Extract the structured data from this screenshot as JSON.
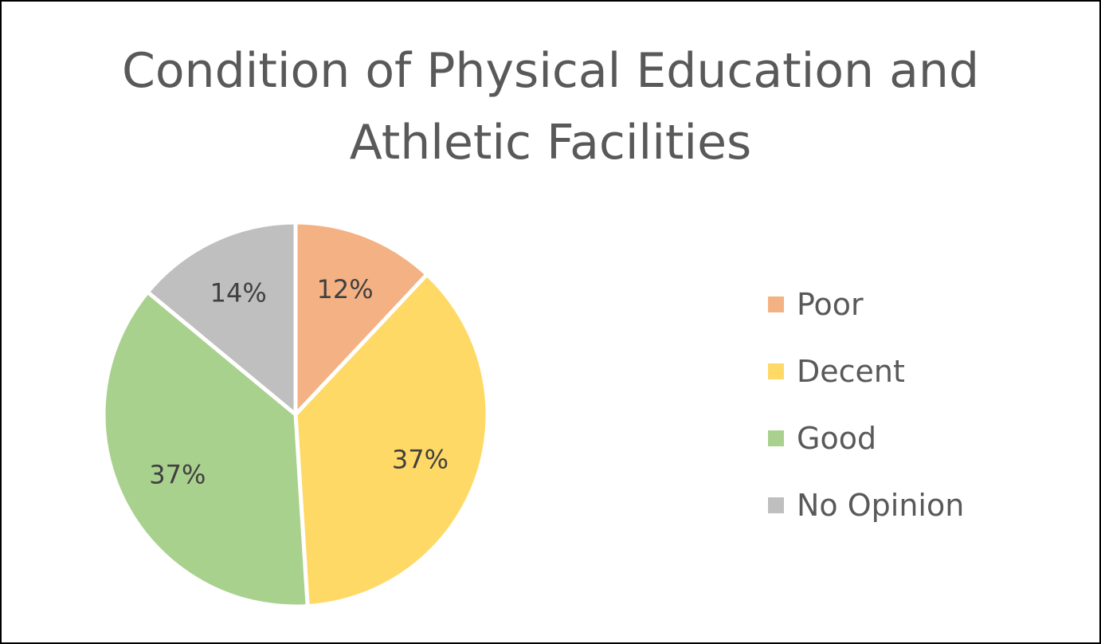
{
  "chart_data": {
    "type": "pie",
    "title_lines": [
      "Condition of Physical Education and",
      "Athletic Facilities"
    ],
    "categories": [
      "Poor",
      "Decent",
      "Good",
      "No Opinion"
    ],
    "values": [
      12,
      37,
      37,
      14
    ],
    "labels": [
      "12%",
      "37%",
      "37%",
      "14%"
    ],
    "colors": [
      "#F4B183",
      "#FFD966",
      "#A9D18E",
      "#BFBFBF"
    ],
    "legend_position": "right",
    "start_angle": "12 o'clock",
    "direction": "clockwise"
  }
}
